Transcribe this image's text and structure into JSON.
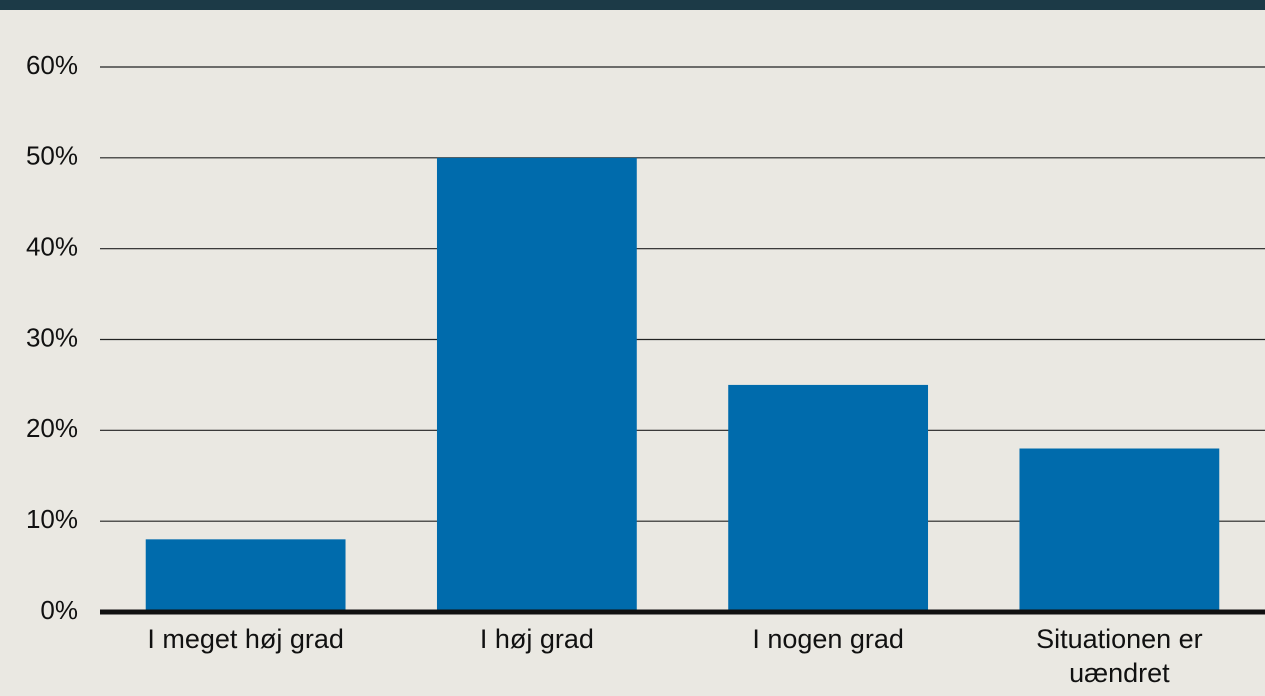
{
  "chart_data": {
    "type": "bar",
    "categories": [
      "I meget høj grad",
      "I høj grad",
      "I nogen grad",
      "Situationen er uændret"
    ],
    "values": [
      8,
      50,
      25,
      18
    ],
    "color": "#006bac",
    "ylim": [
      0,
      60
    ],
    "yticks": [
      {
        "value": 0,
        "label": "0%"
      },
      {
        "value": 10,
        "label": "10%"
      },
      {
        "value": 20,
        "label": "20%"
      },
      {
        "value": 30,
        "label": "30%"
      },
      {
        "value": 40,
        "label": "40%"
      },
      {
        "value": 50,
        "label": "50%"
      },
      {
        "value": 60,
        "label": "60%"
      }
    ],
    "grid": true
  }
}
